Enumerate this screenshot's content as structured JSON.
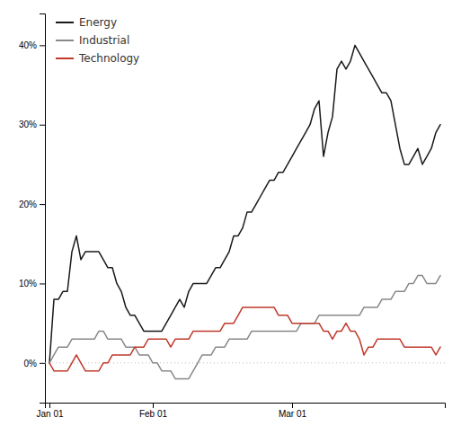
{
  "chart_data": {
    "type": "line",
    "categories": [
      "Jan 01",
      null,
      null,
      null,
      null,
      null,
      null,
      null,
      null,
      null,
      null,
      null,
      null,
      null,
      null,
      null,
      null,
      null,
      null,
      null,
      null,
      null,
      null,
      "Feb 01",
      null,
      null,
      null,
      null,
      null,
      null,
      null,
      null,
      null,
      null,
      null,
      null,
      null,
      null,
      null,
      null,
      null,
      null,
      null,
      null,
      null,
      null,
      null,
      null,
      null,
      null,
      null,
      null,
      null,
      null,
      "Mar 01",
      null,
      null,
      null,
      null,
      null,
      null,
      null,
      null,
      null,
      null,
      null,
      null,
      null,
      null,
      null,
      null,
      null,
      null,
      null,
      null,
      null,
      null,
      null,
      null,
      null,
      null,
      null,
      null,
      null,
      null,
      null,
      null,
      null
    ],
    "series": [
      {
        "name": "Energy",
        "color": "#1a1a1a",
        "values": [
          0.0,
          0.08,
          0.08,
          0.09,
          0.09,
          0.14,
          0.16,
          0.13,
          0.14,
          0.14,
          0.14,
          0.14,
          0.13,
          0.12,
          0.12,
          0.1,
          0.09,
          0.07,
          0.06,
          0.06,
          0.05,
          0.04,
          0.04,
          0.04,
          0.04,
          0.04,
          0.05,
          0.06,
          0.07,
          0.08,
          0.07,
          0.09,
          0.1,
          0.1,
          0.1,
          0.1,
          0.11,
          0.12,
          0.12,
          0.13,
          0.14,
          0.16,
          0.16,
          0.17,
          0.19,
          0.19,
          0.2,
          0.21,
          0.22,
          0.23,
          0.23,
          0.24,
          0.24,
          0.25,
          0.26,
          0.27,
          0.28,
          0.29,
          0.3,
          0.32,
          0.33,
          0.26,
          0.29,
          0.31,
          0.37,
          0.38,
          0.37,
          0.38,
          0.4,
          0.39,
          0.38,
          0.37,
          0.36,
          0.35,
          0.34,
          0.34,
          0.33,
          0.3,
          0.27,
          0.25,
          0.25,
          0.26,
          0.27,
          0.25,
          0.26,
          0.27,
          0.29,
          0.3
        ]
      },
      {
        "name": "Industrial",
        "color": "#888888",
        "values": [
          0.0,
          0.01,
          0.02,
          0.02,
          0.02,
          0.03,
          0.03,
          0.03,
          0.03,
          0.03,
          0.03,
          0.04,
          0.04,
          0.03,
          0.03,
          0.03,
          0.03,
          0.02,
          0.02,
          0.02,
          0.01,
          0.01,
          0.01,
          0.0,
          0.0,
          -0.01,
          -0.01,
          -0.01,
          -0.02,
          -0.02,
          -0.02,
          -0.02,
          -0.01,
          0.0,
          0.01,
          0.01,
          0.01,
          0.02,
          0.02,
          0.02,
          0.03,
          0.03,
          0.03,
          0.03,
          0.03,
          0.04,
          0.04,
          0.04,
          0.04,
          0.04,
          0.04,
          0.04,
          0.04,
          0.04,
          0.04,
          0.04,
          0.05,
          0.05,
          0.05,
          0.05,
          0.06,
          0.06,
          0.06,
          0.06,
          0.06,
          0.06,
          0.06,
          0.06,
          0.06,
          0.06,
          0.07,
          0.07,
          0.07,
          0.07,
          0.08,
          0.08,
          0.08,
          0.09,
          0.09,
          0.09,
          0.1,
          0.1,
          0.11,
          0.11,
          0.1,
          0.1,
          0.1,
          0.11
        ]
      },
      {
        "name": "Technology",
        "color": "#c0392b",
        "values": [
          0.0,
          -0.01,
          -0.01,
          -0.01,
          -0.01,
          0.0,
          0.01,
          0.0,
          -0.01,
          -0.01,
          -0.01,
          -0.01,
          0.0,
          0.0,
          0.01,
          0.01,
          0.01,
          0.01,
          0.01,
          0.02,
          0.02,
          0.02,
          0.03,
          0.03,
          0.03,
          0.03,
          0.03,
          0.02,
          0.03,
          0.03,
          0.03,
          0.03,
          0.04,
          0.04,
          0.04,
          0.04,
          0.04,
          0.04,
          0.04,
          0.05,
          0.05,
          0.05,
          0.06,
          0.07,
          0.07,
          0.07,
          0.07,
          0.07,
          0.07,
          0.07,
          0.07,
          0.06,
          0.06,
          0.06,
          0.05,
          0.05,
          0.05,
          0.05,
          0.05,
          0.05,
          0.05,
          0.04,
          0.04,
          0.03,
          0.04,
          0.04,
          0.05,
          0.04,
          0.04,
          0.03,
          0.01,
          0.02,
          0.02,
          0.03,
          0.03,
          0.03,
          0.03,
          0.03,
          0.03,
          0.02,
          0.02,
          0.02,
          0.02,
          0.02,
          0.02,
          0.02,
          0.01,
          0.02
        ]
      }
    ],
    "ylim": [
      -0.05,
      0.44
    ],
    "yticks": [
      {
        "value": 0.0,
        "label": "0%"
      },
      {
        "value": 0.1,
        "label": "10%"
      },
      {
        "value": 0.2,
        "label": "20%"
      },
      {
        "value": 0.3,
        "label": "30%"
      },
      {
        "value": 0.4,
        "label": "40%"
      }
    ],
    "legend": "upper left"
  }
}
